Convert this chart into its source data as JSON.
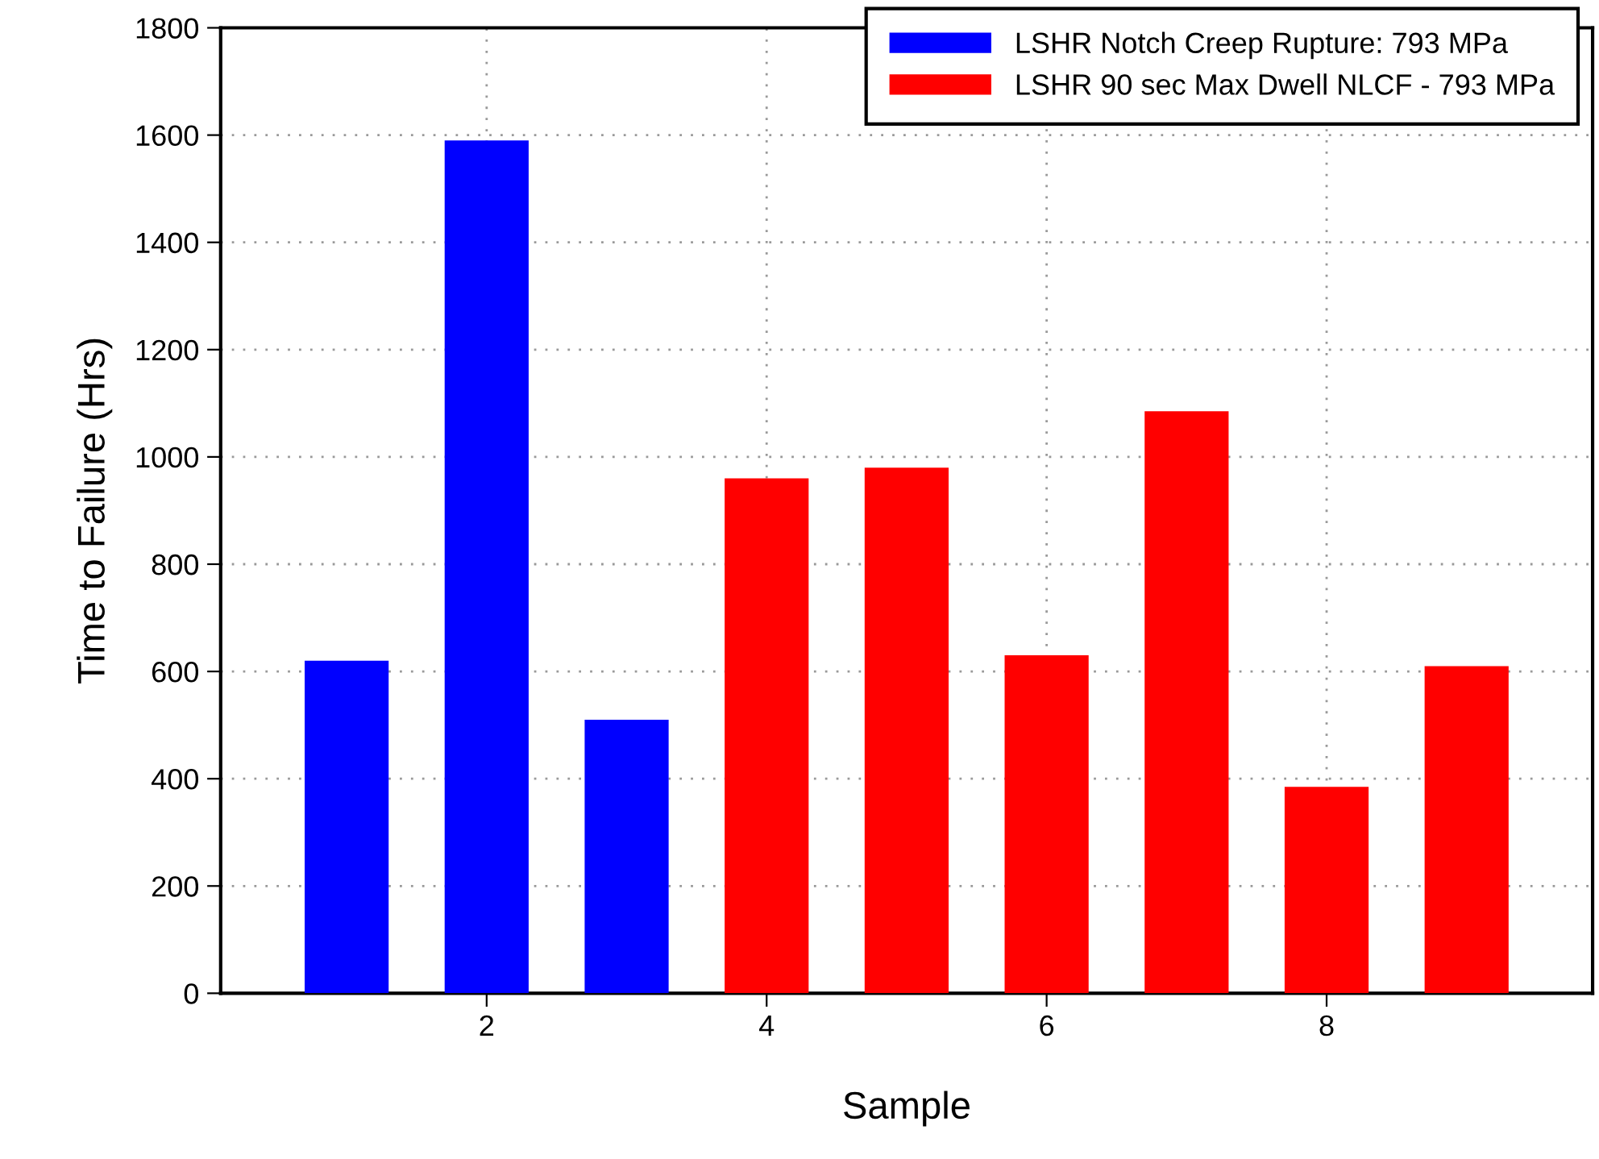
{
  "chart_data": {
    "type": "bar",
    "xlabel": "Sample",
    "ylabel": "Time to Failure (Hrs)",
    "series": [
      {
        "name": "LSHR Notch Creep Rupture: 793 MPa",
        "color": "#0000ff",
        "x": [
          1,
          2,
          3
        ],
        "values": [
          620,
          1590,
          510
        ]
      },
      {
        "name": "LSHR 90 sec Max Dwell NLCF - 793 MPa",
        "color": "#ff0000",
        "x": [
          4,
          5,
          6,
          7,
          8,
          9
        ],
        "values": [
          960,
          980,
          630,
          1085,
          385,
          610
        ]
      }
    ],
    "xlim": [
      0.1,
      9.9
    ],
    "xticks": [
      2,
      4,
      6,
      8
    ],
    "ylim": [
      0,
      1800
    ],
    "yticks": [
      0,
      200,
      400,
      600,
      800,
      1000,
      1200,
      1400,
      1600,
      1800
    ],
    "grid": true,
    "legend": "top right"
  }
}
